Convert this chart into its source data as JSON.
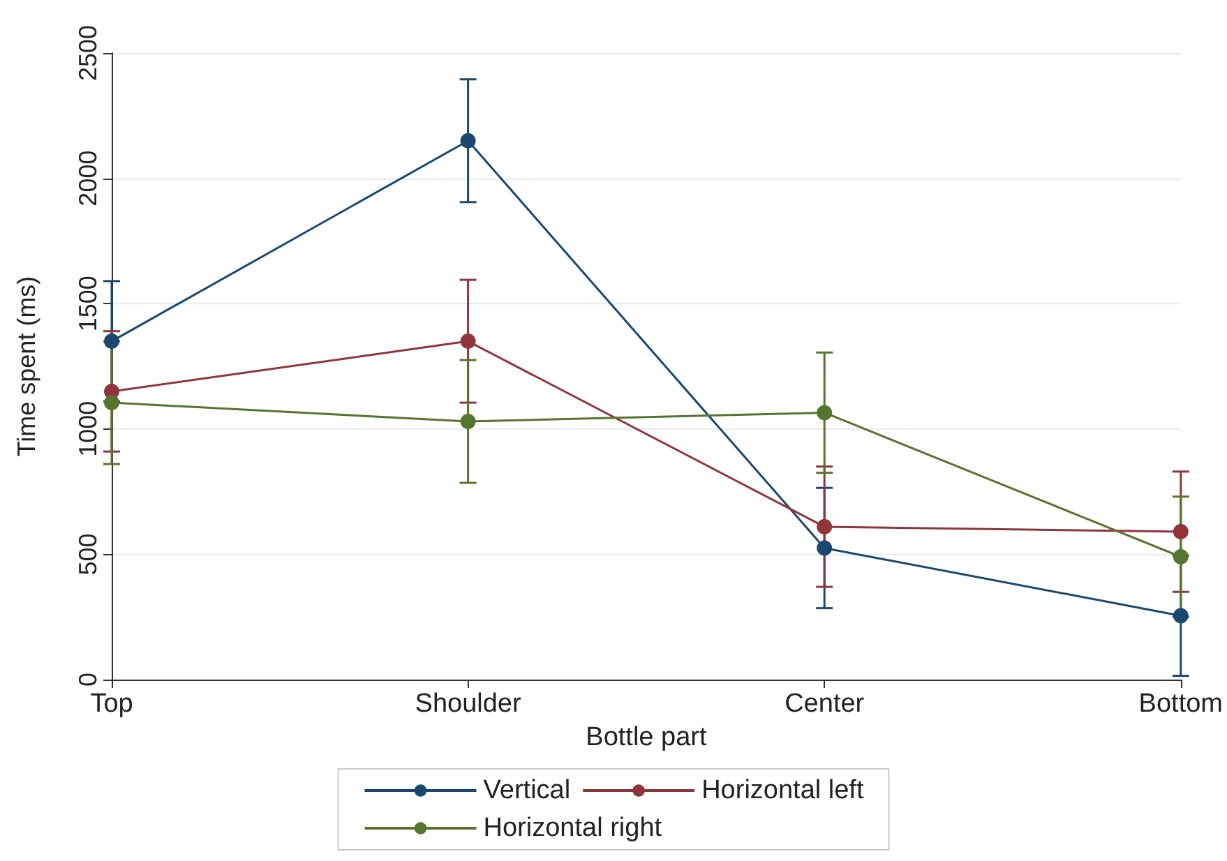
{
  "chart_data": {
    "type": "line",
    "xlabel": "Bottle part",
    "ylabel": "Time spent (ms)",
    "categories": [
      "Top",
      "Shoulder",
      "Center",
      "Bottom"
    ],
    "series": [
      {
        "name": "Vertical",
        "color": "#1a476f",
        "values": [
          1350,
          2150,
          525,
          255
        ],
        "errors": [
          240,
          245,
          240,
          240
        ]
      },
      {
        "name": "Horizontal left",
        "color": "#90353b",
        "values": [
          1150,
          1350,
          610,
          590
        ],
        "errors": [
          240,
          245,
          240,
          240
        ]
      },
      {
        "name": "Horizontal right",
        "color": "#55752f",
        "values": [
          1105,
          1030,
          1065,
          490
        ],
        "errors": [
          245,
          245,
          240,
          240
        ]
      }
    ],
    "ylim": [
      0,
      2500
    ],
    "yticks": [
      0,
      500,
      1000,
      1500,
      2000,
      2500
    ],
    "grid": "y",
    "legend": "bottom",
    "marker": "circle",
    "line_style": "solid"
  }
}
